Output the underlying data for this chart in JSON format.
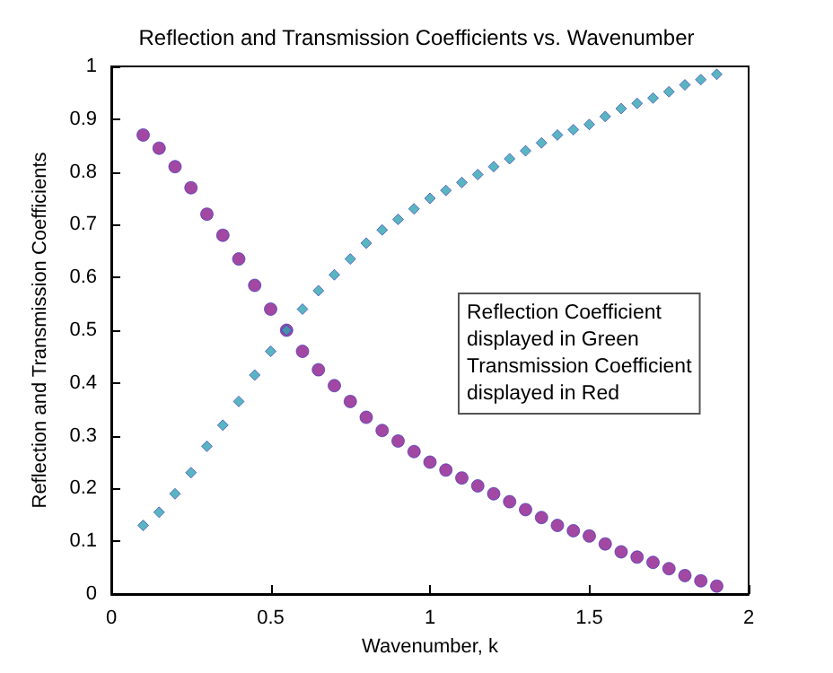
{
  "chart_data": {
    "type": "scatter",
    "title": "Reflection and Transmission Coefficients vs. Wavenumber",
    "xlabel": "Wavenumber, k",
    "ylabel": "Reflection and Transmission Coefficients",
    "x": [
      0.1,
      0.15,
      0.2,
      0.25,
      0.3,
      0.35,
      0.4,
      0.45,
      0.5,
      0.55,
      0.6,
      0.65,
      0.7,
      0.75,
      0.8,
      0.85,
      0.9,
      0.95,
      1.0,
      1.05,
      1.1,
      1.15,
      1.2,
      1.25,
      1.3,
      1.35,
      1.4,
      1.45,
      1.5,
      1.55,
      1.6,
      1.65,
      1.7,
      1.75,
      1.8,
      1.85,
      1.9
    ],
    "series": [
      {
        "color": "#8b1a8b",
        "marker": "circle",
        "values": [
          0.87,
          0.845,
          0.81,
          0.77,
          0.72,
          0.68,
          0.635,
          0.585,
          0.54,
          0.5,
          0.46,
          0.425,
          0.395,
          0.365,
          0.335,
          0.31,
          0.29,
          0.27,
          0.25,
          0.235,
          0.22,
          0.205,
          0.19,
          0.175,
          0.16,
          0.145,
          0.13,
          0.12,
          0.11,
          0.095,
          0.08,
          0.07,
          0.06,
          0.048,
          0.035,
          0.025,
          0.015
        ]
      },
      {
        "color": "#2fa3b0",
        "marker": "diamond",
        "values": [
          0.13,
          0.155,
          0.19,
          0.23,
          0.28,
          0.32,
          0.365,
          0.415,
          0.46,
          0.5,
          0.54,
          0.575,
          0.605,
          0.635,
          0.665,
          0.69,
          0.71,
          0.73,
          0.75,
          0.765,
          0.78,
          0.795,
          0.81,
          0.825,
          0.84,
          0.855,
          0.87,
          0.88,
          0.89,
          0.905,
          0.92,
          0.93,
          0.94,
          0.952,
          0.965,
          0.975,
          0.985
        ]
      }
    ],
    "xlim": [
      0,
      2
    ],
    "xticks": [
      0,
      0.5,
      1,
      1.5,
      2
    ],
    "ylim": [
      0,
      1
    ],
    "yticks": [
      0,
      0.1,
      0.2,
      0.3,
      0.4,
      0.5,
      0.6,
      0.7,
      0.8,
      0.9,
      1
    ],
    "grid": false,
    "annotations": [
      "Reflection Coefficient\ndisplayed in Green\nTransmission Coefficient\ndisplayed in Red"
    ]
  }
}
